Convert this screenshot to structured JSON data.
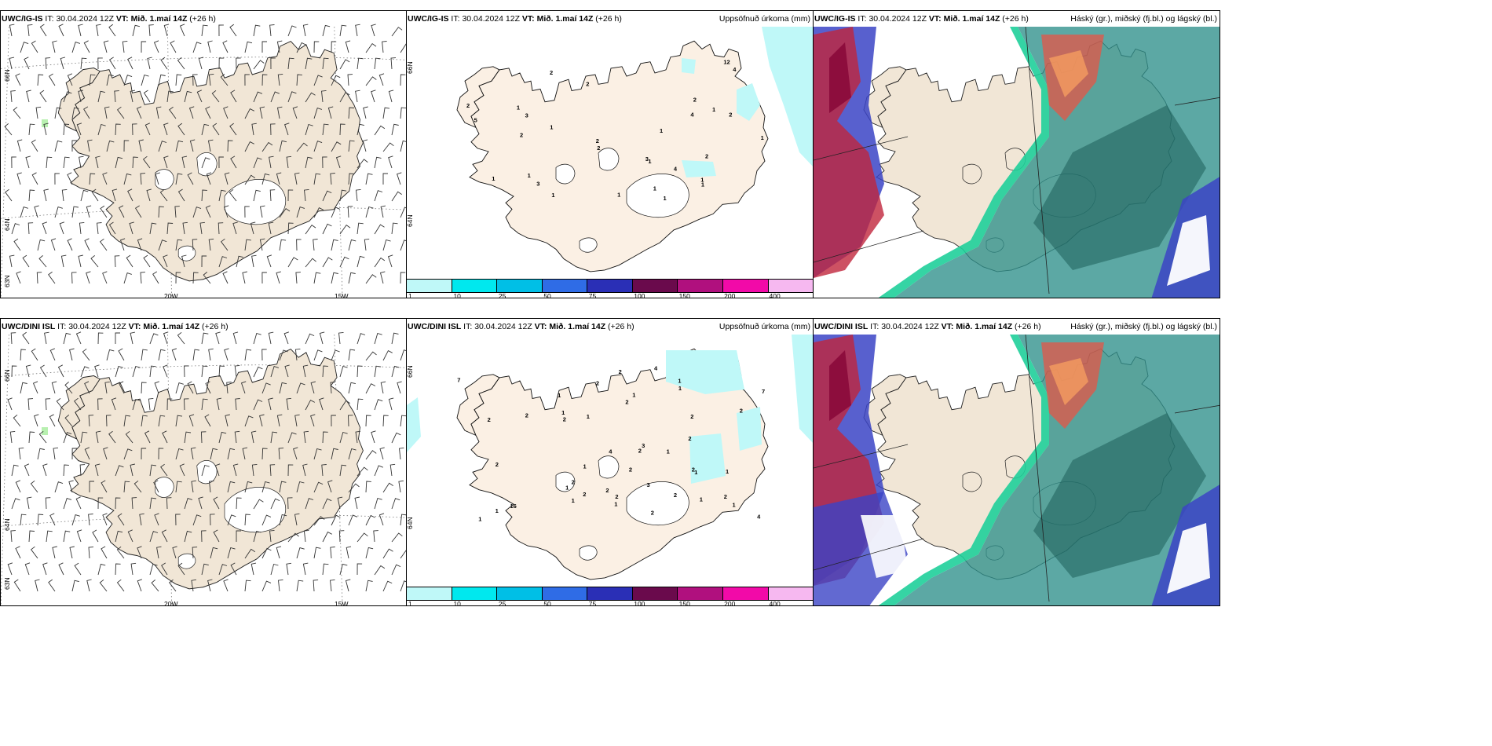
{
  "rows": [
    {
      "model": "UWC/IG-IS",
      "panels": [
        {
          "kind": "wind",
          "model": "UWC/IG-IS",
          "it_label": "IT:",
          "it": "30.04.2024 12Z",
          "vt_label": "VT:",
          "vt": "Mið. 1.maí 14Z",
          "lead": "(+26 h)",
          "lat_labels": [
            "66N",
            "64N",
            "63N"
          ],
          "lon_labels": [
            "20W",
            "15W"
          ]
        },
        {
          "kind": "precip",
          "model": "UWC/IG-IS",
          "it_label": "IT:",
          "it": "30.04.2024 12Z",
          "vt_label": "VT:",
          "vt": "Mið. 1.maí 14Z",
          "lead": "(+26 h)",
          "right_title": "Uppsöfnuð úrkoma (mm)",
          "lat_labels": [
            "66N",
            "64N"
          ]
        },
        {
          "kind": "cloud",
          "model": "UWC/IG-IS",
          "it_label": "IT:",
          "it": "30.04.2024 12Z",
          "vt_label": "VT:",
          "vt": "Mið. 1.maí 14Z",
          "lead": "(+26 h)",
          "right_title": "Háský (gr.), miðský (fj.bl.) og lágský (bl.)"
        }
      ]
    },
    {
      "model": "UWC/DINI ISL",
      "panels": [
        {
          "kind": "wind",
          "model": "UWC/DINI ISL",
          "it_label": "IT:",
          "it": "30.04.2024 12Z",
          "vt_label": "VT:",
          "vt": "Mið. 1.maí 14Z",
          "lead": "(+26 h)",
          "lat_labels": [
            "66N",
            "64N",
            "63N"
          ],
          "lon_labels": [
            "20W",
            "15W"
          ]
        },
        {
          "kind": "precip",
          "model": "UWC/DINI ISL",
          "it_label": "IT:",
          "it": "30.04.2024 12Z",
          "vt_label": "VT:",
          "vt": "Mið. 1.maí 14Z",
          "lead": "(+26 h)",
          "right_title": "Uppsöfnuð úrkoma (mm)",
          "lat_labels": [
            "66N",
            "64N"
          ]
        },
        {
          "kind": "cloud",
          "model": "UWC/DINI ISL",
          "it_label": "IT:",
          "it": "30.04.2024 12Z",
          "vt_label": "VT:",
          "vt": "Mið. 1.maí 14Z",
          "lead": "(+26 h)",
          "right_title": "Háský (gr.), miðský (fj.bl.) og lágský (bl.)"
        }
      ]
    }
  ],
  "colorbar": {
    "labels": [
      "1",
      "10",
      "25",
      "50",
      "75",
      "100",
      "150",
      "200",
      "400"
    ],
    "colors": [
      "#bff8f8",
      "#00e8ee",
      "#00bfe6",
      "#2f6ce6",
      "#2a2fb6",
      "#6a0a4c",
      "#b0107e",
      "#f20aa8",
      "#f6b8f0"
    ]
  },
  "precip_values": {
    "top": [
      "1",
      "2",
      "1",
      "1",
      "1",
      "1",
      "1",
      "1",
      "2",
      "3",
      "1",
      "2",
      "2",
      "3",
      "4",
      "12",
      "5",
      "4",
      "2",
      "2",
      "1",
      "1",
      "1",
      "1",
      "1",
      "2",
      "2",
      "3",
      "1",
      "2",
      "4"
    ],
    "bottom": [
      "1",
      "1",
      "3",
      "2",
      "2",
      "4",
      "2",
      "1",
      "1",
      "1",
      "4",
      "2",
      "2",
      "2",
      "2",
      "1",
      "2",
      "2",
      "4",
      "7",
      "7",
      "16",
      "1",
      "1",
      "1",
      "1",
      "1",
      "2",
      "2",
      "3",
      "1",
      "1",
      "1",
      "1",
      "2",
      "2",
      "2",
      "2",
      "2",
      "2",
      "2",
      "2",
      "1",
      "1",
      "2"
    ]
  },
  "colors": {
    "land": "#f1e6d6",
    "land_precip": "#fbf0e4",
    "glacier": "#ffffff",
    "sea": "#ffffff",
    "light_precip": "#bff8f8",
    "high_cloud": "#2e8f8a",
    "mid_cloud": "#c0263c",
    "low_cloud": "#3b44c6"
  }
}
